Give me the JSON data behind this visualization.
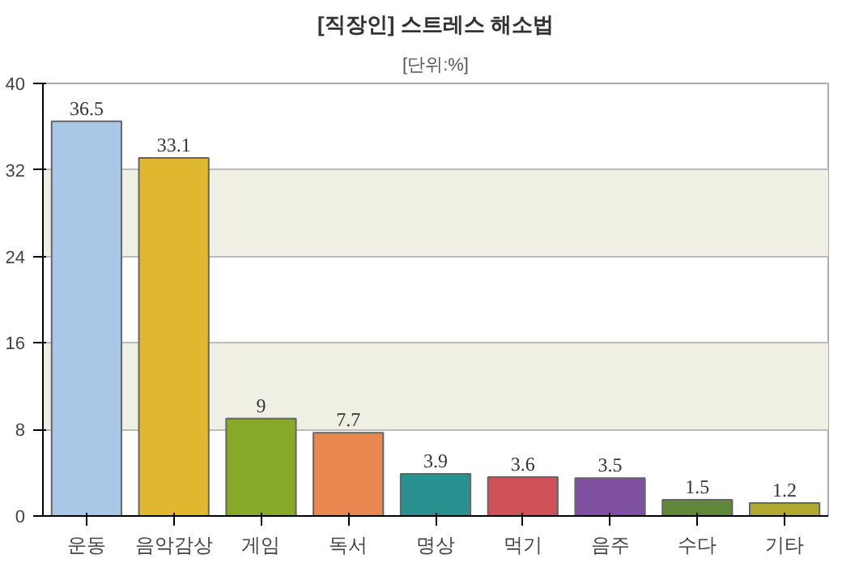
{
  "chart_data": {
    "type": "bar",
    "title": "[직장인] 스트레스 해소법",
    "subtitle": "[단위:%]",
    "categories": [
      "운동",
      "음악감상",
      "게임",
      "독서",
      "명상",
      "먹기",
      "음주",
      "수다",
      "기타"
    ],
    "values": [
      36.5,
      33.1,
      9,
      7.7,
      3.9,
      3.6,
      3.5,
      1.5,
      1.2
    ],
    "colors": [
      "#a9c8e8",
      "#e0b830",
      "#88a828",
      "#e88850",
      "#2a9090",
      "#d05058",
      "#8050a0",
      "#608838",
      "#b0a830"
    ],
    "ylim": [
      0,
      40
    ],
    "yticks": [
      0,
      8,
      16,
      24,
      32,
      40
    ],
    "grid": "y",
    "data_labels": true
  }
}
